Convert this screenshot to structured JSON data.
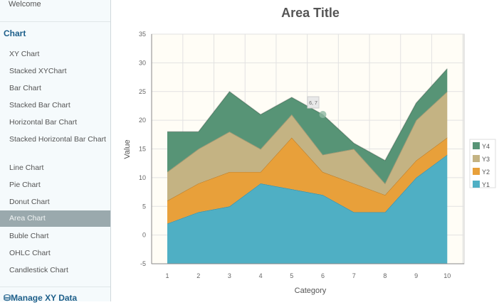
{
  "sidebar": {
    "welcome": "Welcome",
    "section": "Chart",
    "items": [
      "XY Chart",
      "Stacked XYChart",
      "Bar Chart",
      "Stacked Bar Chart",
      "Horizontal Bar Chart",
      "Stacked Horizontal Bar Chart",
      "Line Chart",
      "Pie Chart",
      "Donut Chart",
      "Area Chart",
      "Buble Chart",
      "OHLC Chart",
      "Candlestick Chart"
    ],
    "active": "Area Chart",
    "manage": "Manage XY Data"
  },
  "chart_data": {
    "type": "area",
    "stacked": true,
    "title": "Area Title",
    "xlabel": "Category",
    "ylabel": "Value",
    "x": [
      1,
      2,
      3,
      4,
      5,
      6,
      7,
      8,
      9,
      10
    ],
    "ylim": [
      -5,
      35
    ],
    "yticks": [
      -5,
      0,
      5,
      10,
      15,
      20,
      25,
      30,
      35
    ],
    "grid": true,
    "legend": "right",
    "series": [
      {
        "name": "Y1",
        "color": "#4fafc4",
        "values": [
          2,
          4,
          5,
          9,
          8,
          7,
          4,
          4,
          10,
          14
        ]
      },
      {
        "name": "Y2",
        "color": "#e8a03a",
        "values": [
          4,
          5,
          6,
          2,
          9,
          4,
          5,
          3,
          3,
          3
        ]
      },
      {
        "name": "Y3",
        "color": "#c4b383",
        "values": [
          5,
          6,
          7,
          4,
          4,
          3,
          6,
          2,
          7,
          8
        ]
      },
      {
        "name": "Y4",
        "color": "#579476",
        "values": [
          7,
          3,
          7,
          6,
          3,
          7,
          1,
          4,
          3,
          4
        ]
      }
    ],
    "tooltip": "6, 7"
  }
}
